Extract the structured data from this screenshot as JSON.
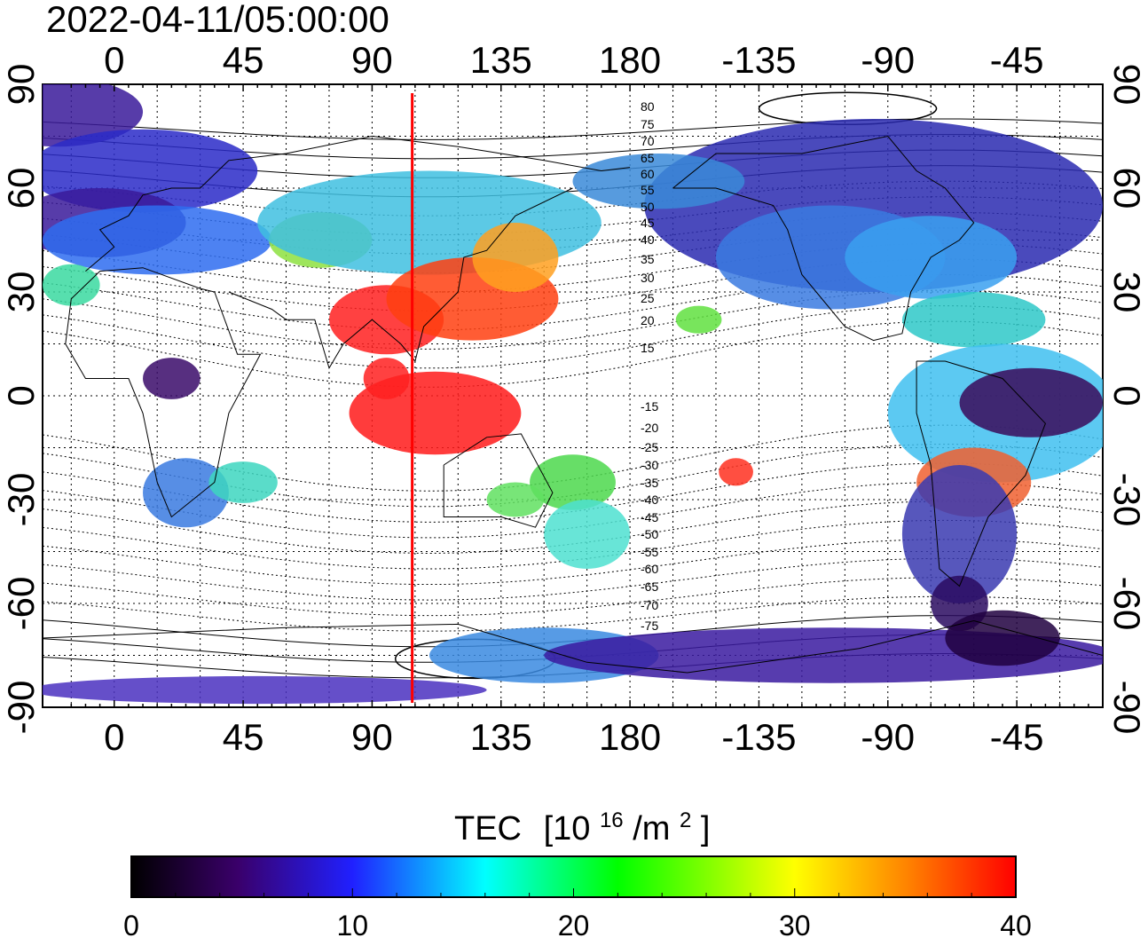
{
  "header": {
    "timestamp": "2022-04-11/05:00:00"
  },
  "map": {
    "lon_ticks": [
      "0",
      "45",
      "90",
      "135",
      "180",
      "-135",
      "-90",
      "-45"
    ],
    "lon_tick_values": [
      0,
      45,
      90,
      135,
      180,
      225,
      270,
      315
    ],
    "lat_ticks": [
      "90",
      "60",
      "30",
      "0",
      "-30",
      "-60",
      "-90"
    ],
    "lat_tick_values": [
      90,
      60,
      30,
      0,
      -30,
      -60,
      -90
    ],
    "lon_range": [
      -25,
      345
    ],
    "lat_range": [
      -90,
      90
    ],
    "grid": true,
    "terminator_longitude": 104,
    "magnetic_latitude_labels": [
      "80",
      "75",
      "70",
      "65",
      "60",
      "55",
      "50",
      "45",
      "40",
      "35",
      "30",
      "25",
      "20",
      "15",
      "-15",
      "-20",
      "-25",
      "-30",
      "-35",
      "-40",
      "-45",
      "-50",
      "-55",
      "-60",
      "-65",
      "-70",
      "-75"
    ]
  },
  "colorbar": {
    "title": "TEC",
    "unit": "[10",
    "unit_exp": "16",
    "unit_mid": "/m",
    "unit_exp2": "2",
    "unit_close": "]",
    "ticks": [
      "0",
      "10",
      "20",
      "30",
      "40"
    ],
    "tick_values": [
      0,
      10,
      20,
      30,
      40
    ],
    "range": [
      0,
      40
    ],
    "colormap": [
      "#000000",
      "#3a006a",
      "#2020ff",
      "#00ffff",
      "#00ff00",
      "#ffff00",
      "#ff8000",
      "#ff0000"
    ]
  },
  "colors": {
    "terminator": "#ff0000"
  }
}
